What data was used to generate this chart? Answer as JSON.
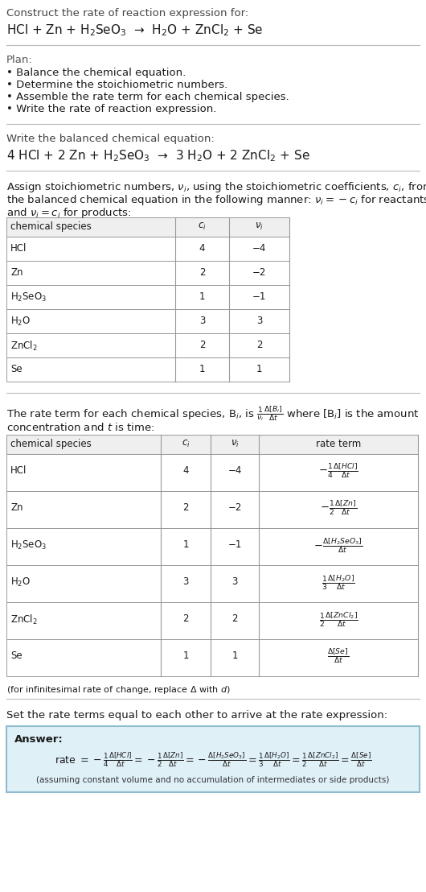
{
  "bg_color": "#ffffff",
  "title_line1": "Construct the rate of reaction expression for:",
  "reaction_unbalanced": "HCl + Zn + H$_2$SeO$_3$  →  H$_2$O + ZnCl$_2$ + Se",
  "plan_header": "Plan:",
  "plan_items": [
    "• Balance the chemical equation.",
    "• Determine the stoichiometric numbers.",
    "• Assemble the rate term for each chemical species.",
    "• Write the rate of reaction expression."
  ],
  "balanced_header": "Write the balanced chemical equation:",
  "reaction_balanced": "4 HCl + 2 Zn + H$_2$SeO$_3$  →  3 H$_2$O + 2 ZnCl$_2$ + Se",
  "assign_text1": "Assign stoichiometric numbers, $\\nu_i$, using the stoichiometric coefficients, $c_i$, from",
  "assign_text2": "the balanced chemical equation in the following manner: $\\nu_i = -c_i$ for reactants",
  "assign_text3": "and $\\nu_i = c_i$ for products:",
  "table1_headers": [
    "chemical species",
    "$c_i$",
    "$\\nu_i$"
  ],
  "table1_data": [
    [
      "HCl",
      "4",
      "−4"
    ],
    [
      "Zn",
      "2",
      "−2"
    ],
    [
      "H$_2$SeO$_3$",
      "1",
      "−1"
    ],
    [
      "H$_2$O",
      "3",
      "3"
    ],
    [
      "ZnCl$_2$",
      "2",
      "2"
    ],
    [
      "Se",
      "1",
      "1"
    ]
  ],
  "rate_text1": "The rate term for each chemical species, B$_i$, is $\\frac{1}{\\nu_i}\\frac{\\Delta[B_i]}{\\Delta t}$ where [B$_i$] is the amount",
  "rate_text2": "concentration and $t$ is time:",
  "table2_headers": [
    "chemical species",
    "$c_i$",
    "$\\nu_i$",
    "rate term"
  ],
  "table2_data": [
    [
      "HCl",
      "4",
      "−4",
      "$-\\frac{1}{4}\\frac{\\Delta[HCl]}{\\Delta t}$"
    ],
    [
      "Zn",
      "2",
      "−2",
      "$-\\frac{1}{2}\\frac{\\Delta[Zn]}{\\Delta t}$"
    ],
    [
      "H$_2$SeO$_3$",
      "1",
      "−1",
      "$-\\frac{\\Delta[H_2SeO_3]}{\\Delta t}$"
    ],
    [
      "H$_2$O",
      "3",
      "3",
      "$\\frac{1}{3}\\frac{\\Delta[H_2O]}{\\Delta t}$"
    ],
    [
      "ZnCl$_2$",
      "2",
      "2",
      "$\\frac{1}{2}\\frac{\\Delta[ZnCl_2]}{\\Delta t}$"
    ],
    [
      "Se",
      "1",
      "1",
      "$\\frac{\\Delta[Se]}{\\Delta t}$"
    ]
  ],
  "infinitesimal_note": "(for infinitesimal rate of change, replace Δ with $d$)",
  "set_rate_text": "Set the rate terms equal to each other to arrive at the rate expression:",
  "answer_box_color": "#dff0f7",
  "answer_box_border": "#90bcd0",
  "answer_label": "Answer:",
  "rate_expression": "rate $= -\\frac{1}{4}\\frac{\\Delta[HCl]}{\\Delta t} = -\\frac{1}{2}\\frac{\\Delta[Zn]}{\\Delta t} = -\\frac{\\Delta[H_2SeO_3]}{\\Delta t} = \\frac{1}{3}\\frac{\\Delta[H_2O]}{\\Delta t} = \\frac{1}{2}\\frac{\\Delta[ZnCl_2]}{\\Delta t} = \\frac{\\Delta[Se]}{\\Delta t}$",
  "assuming_note": "(assuming constant volume and no accumulation of intermediates or side products)",
  "font_size_body": 9.5,
  "font_size_reaction": 11,
  "font_size_table": 8.5,
  "font_size_small": 8.0,
  "text_color": "#1a1a1a",
  "table_line_color": "#999999",
  "table_header_bg": "#efefef"
}
